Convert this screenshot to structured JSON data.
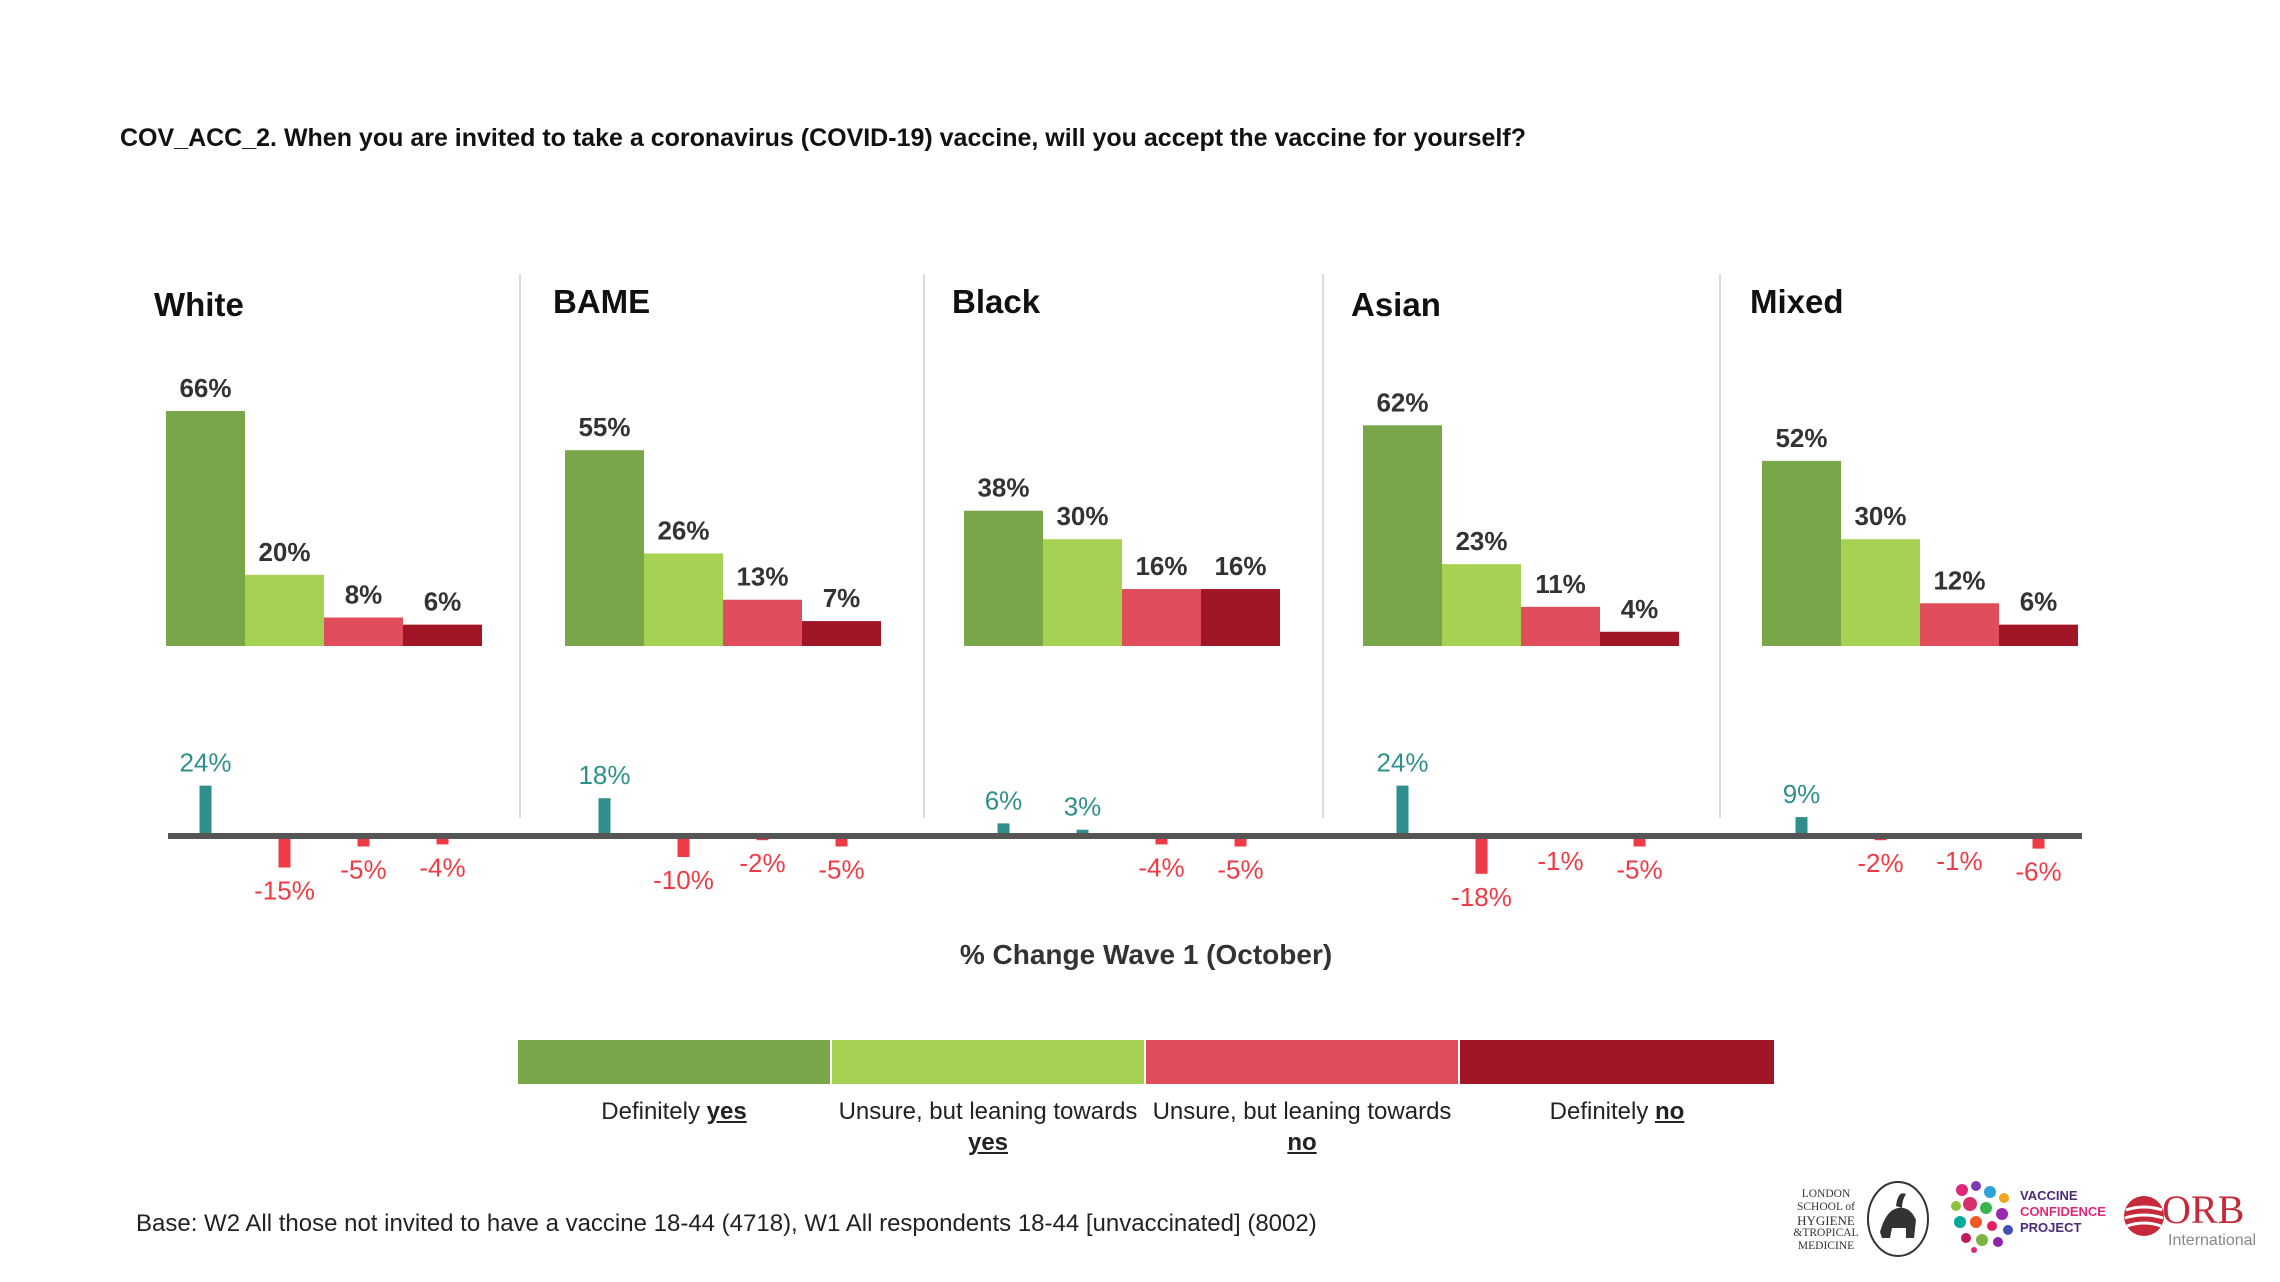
{
  "question": "COV_ACC_2. When you are invited to take a coronavirus (COVID-19) vaccine, will you accept the vaccine for yourself?",
  "colors": {
    "def_yes": "#7aa64a",
    "lean_yes": "#a6d152",
    "lean_no": "#e04e5c",
    "def_no": "#a01626",
    "change_pos": "#2f8f8c",
    "change_neg": "#ef3b45",
    "axis": "#555555"
  },
  "chart_data": {
    "type": "bar",
    "categories": [
      "Definitely yes",
      "Unsure, but leaning towards yes",
      "Unsure, but leaning towards no",
      "Definitely no"
    ],
    "groups": [
      {
        "name": "White",
        "values": [
          66,
          20,
          8,
          6
        ],
        "labels": [
          "66%",
          "20%",
          "8%",
          "6%"
        ],
        "change": [
          24,
          -15,
          -5,
          -4
        ],
        "change_labels": [
          "24%",
          "-15%",
          "-5%",
          "-4%"
        ]
      },
      {
        "name": "BAME",
        "values": [
          55,
          26,
          13,
          7
        ],
        "labels": [
          "55%",
          "26%",
          "13%",
          "7%"
        ],
        "change": [
          18,
          -10,
          -2,
          -5
        ],
        "change_labels": [
          "18%",
          "-10%",
          "-2%",
          "-5%"
        ]
      },
      {
        "name": "Black",
        "values": [
          38,
          30,
          16,
          16
        ],
        "labels": [
          "38%",
          "30%",
          "16%",
          "16%"
        ],
        "change": [
          6,
          3,
          -4,
          -5
        ],
        "change_labels": [
          "6%",
          "3%",
          "-4%",
          "-5%"
        ]
      },
      {
        "name": "Asian",
        "values": [
          62,
          23,
          11,
          4
        ],
        "labels": [
          "62%",
          "23%",
          "11%",
          "4%"
        ],
        "change": [
          24,
          -18,
          -1,
          -5
        ],
        "change_labels": [
          "24%",
          "-18%",
          "-1%",
          "-5%"
        ]
      },
      {
        "name": "Mixed",
        "values": [
          52,
          30,
          12,
          6
        ],
        "labels": [
          "52%",
          "30%",
          "12%",
          "6%"
        ],
        "change": [
          9,
          -2,
          -1,
          -6
        ],
        "change_labels": [
          "9%",
          "-2%",
          "-1%",
          "-6%"
        ]
      }
    ],
    "change_title": "% Change Wave 1 (October)"
  },
  "legend": {
    "items": [
      {
        "text": "Definitely ",
        "bold": "yes"
      },
      {
        "text": "Unsure, but leaning towards ",
        "bold": "yes"
      },
      {
        "text": "Unsure, but leaning towards ",
        "bold": "no"
      },
      {
        "text": "Definitely ",
        "bold": "no"
      }
    ]
  },
  "base": "Base: W2 All those not invited to have a vaccine 18-44 (4718), W1 All respondents 18-44 [unvaccinated] (8002)",
  "logos": {
    "lshtm": [
      "LONDON",
      "SCHOOL of",
      "HYGIENE",
      "&TROPICAL",
      "MEDICINE"
    ],
    "vcp": [
      "VACCINE",
      "CONFIDENCE",
      "PROJECT"
    ],
    "orb": [
      "ORB",
      "International"
    ]
  }
}
